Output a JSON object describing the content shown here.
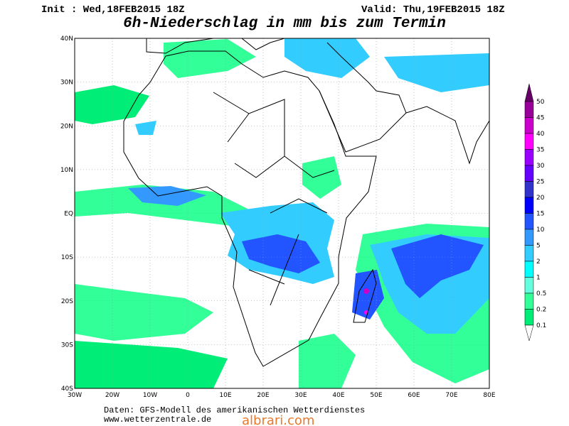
{
  "header": {
    "init": "Init : Wed,18FEB2015 18Z",
    "valid": "Valid: Thu,19FEB2015 18Z",
    "title": "6h-Niederschlag in mm bis zum Termin"
  },
  "map": {
    "lat_labels": [
      "40N",
      "30N",
      "20N",
      "10N",
      "EQ",
      "10S",
      "20S",
      "30S",
      "40S"
    ],
    "lon_labels": [
      "30W",
      "20W",
      "10W",
      "0",
      "10E",
      "20E",
      "30E",
      "40E",
      "50E",
      "60E",
      "70E",
      "80E"
    ]
  },
  "legend": {
    "labels": [
      "50",
      "45",
      "40",
      "35",
      "30",
      "25",
      "20",
      "15",
      "10",
      "5",
      "2",
      "1",
      "0.5",
      "0.2",
      "0.1"
    ],
    "colors": [
      "#660066",
      "#990099",
      "#cc00cc",
      "#ff00ff",
      "#9900ff",
      "#6600ff",
      "#3333cc",
      "#0000ff",
      "#2255ff",
      "#3399ff",
      "#33ccff",
      "#00ffff",
      "#66ffdd",
      "#33ff99",
      "#00ee77"
    ]
  },
  "footer": {
    "source": "Daten: GFS-Modell des amerikanischen Wetterdienstes",
    "url": "www.wetterzentrale.de",
    "watermark": "albrari.com"
  }
}
